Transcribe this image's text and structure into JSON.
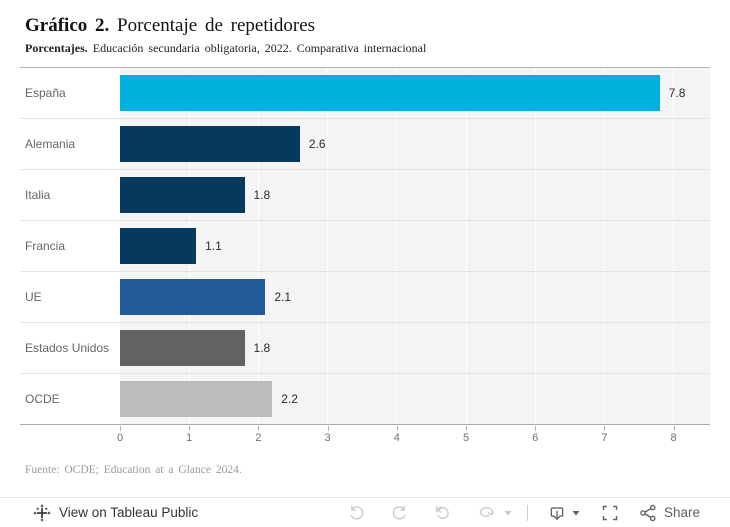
{
  "header": {
    "title_bold": "Gráfico 2.",
    "title_rest": " Porcentaje de repetidores",
    "subtitle_bold": "Porcentajes.",
    "subtitle_rest": " Educación secundaria obligatoria, 2022. Comparativa internacional"
  },
  "chart_data": {
    "type": "bar",
    "orientation": "horizontal",
    "title": "Gráfico 2. Porcentaje de repetidores",
    "subtitle": "Porcentajes. Educación secundaria obligatoria, 2022. Comparativa internacional",
    "categories": [
      "España",
      "Alemania",
      "Italia",
      "Francia",
      "UE",
      "Estados Unidos",
      "OCDE"
    ],
    "values": [
      7.8,
      2.6,
      1.8,
      1.1,
      2.1,
      1.8,
      2.2
    ],
    "value_labels": [
      "7.8",
      "2.6",
      "1.8",
      "1.1",
      "2.1",
      "1.8",
      "2.2"
    ],
    "bar_colors": [
      "#00b1e0",
      "#053a5e",
      "#053a5e",
      "#053a5e",
      "#215a99",
      "#636363",
      "#bcbcbc"
    ],
    "x_ticks": [
      0,
      1,
      2,
      3,
      4,
      5,
      6,
      7,
      8
    ],
    "xlim": [
      0,
      8.5
    ],
    "grid": true,
    "legend": "none",
    "plot_background": "#f4f4f4",
    "gridline_color": "#ffffff"
  },
  "source": {
    "text": "Fuente: OCDE; Education at a Glance 2024."
  },
  "toolbar": {
    "view_label": "View on Tableau Public",
    "share_label": "Share",
    "icons": [
      "tableau-logo",
      "undo",
      "redo",
      "revert",
      "refresh",
      "caret-down",
      "download",
      "fullscreen",
      "share"
    ]
  }
}
